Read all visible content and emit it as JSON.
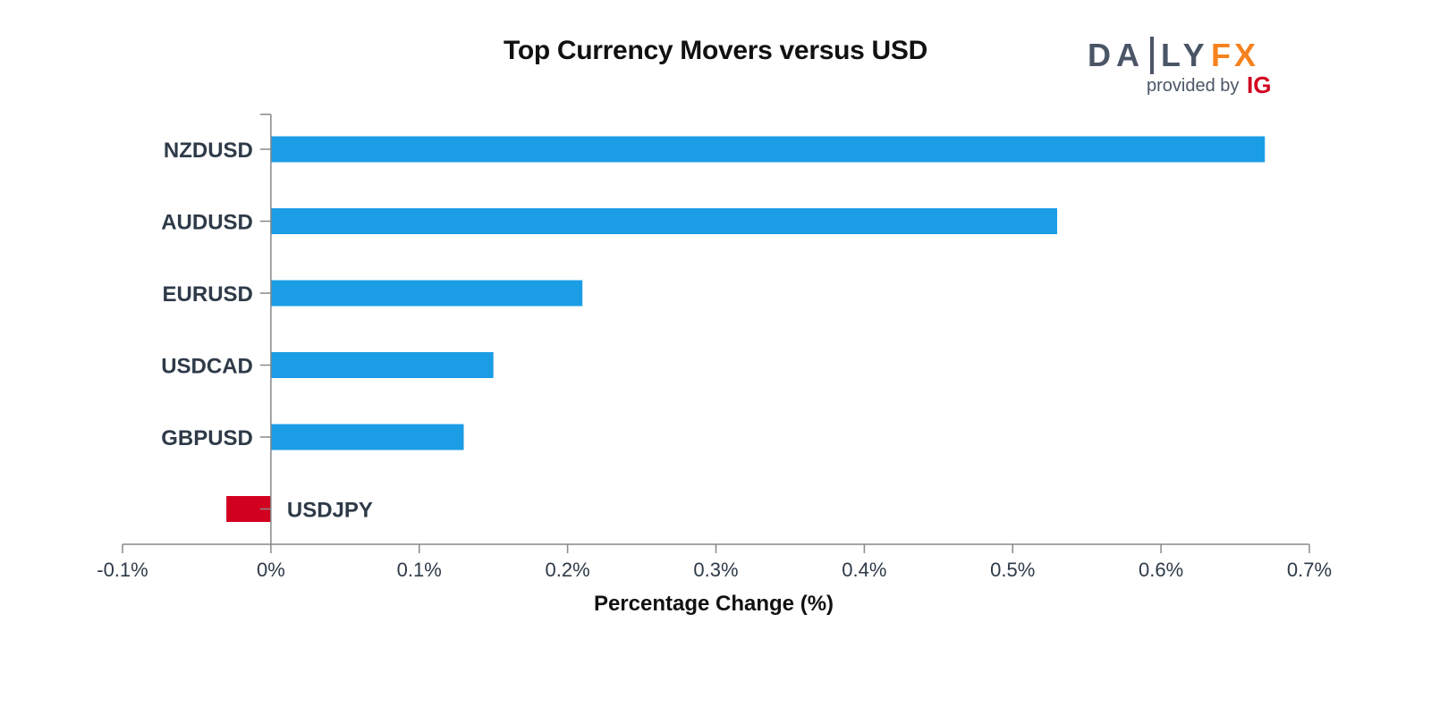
{
  "chart_data": {
    "type": "bar",
    "orientation": "horizontal",
    "title": "Top Currency Movers versus USD",
    "xlabel": "Percentage Change (%)",
    "ylabel": "",
    "categories": [
      "NZDUSD",
      "AUDUSD",
      "EURUSD",
      "USDCAD",
      "GBPUSD",
      "USDJPY"
    ],
    "values": [
      0.67,
      0.53,
      0.21,
      0.15,
      0.13,
      -0.03
    ],
    "xlim": [
      -0.1,
      0.7
    ],
    "xticks": [
      -0.1,
      0,
      0.1,
      0.2,
      0.3,
      0.4,
      0.5,
      0.6,
      0.7
    ],
    "xtick_labels": [
      "-0.1%",
      "0%",
      "0.1%",
      "0.2%",
      "0.3%",
      "0.4%",
      "0.5%",
      "0.6%",
      "0.7%"
    ],
    "grid": false,
    "colors": {
      "positive": "#1b9de5",
      "negative": "#d1001f",
      "axis": "#888888"
    }
  },
  "logo": {
    "brand_daily": "DA",
    "brand_ly": "LY",
    "brand_fx": "FX",
    "provided_by": "provided by",
    "ig": "IG",
    "colors": {
      "daily": "#4a5566",
      "fx": "#f5821f",
      "ig": "#d1001f",
      "provided": "#4a5566"
    }
  }
}
